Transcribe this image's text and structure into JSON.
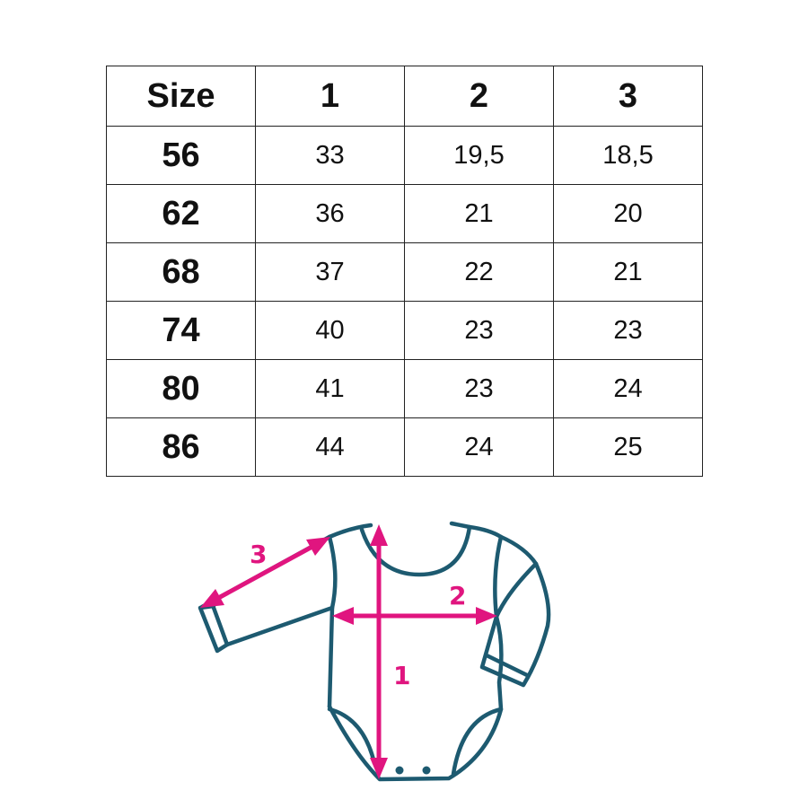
{
  "table": {
    "headers": [
      "Size",
      "1",
      "2",
      "3"
    ],
    "rows": [
      [
        "56",
        "33",
        "19,5",
        "18,5"
      ],
      [
        "62",
        "36",
        "21",
        "20"
      ],
      [
        "68",
        "37",
        "22",
        "21"
      ],
      [
        "74",
        "40",
        "23",
        "23"
      ],
      [
        "80",
        "41",
        "23",
        "24"
      ],
      [
        "86",
        "44",
        "24",
        "25"
      ]
    ]
  },
  "diagram": {
    "garment": "baby-bodysuit-icon",
    "measure_labels": [
      "1",
      "2",
      "3"
    ],
    "colors": {
      "outline": "#1d5a70",
      "arrows": "#e0157f"
    }
  }
}
